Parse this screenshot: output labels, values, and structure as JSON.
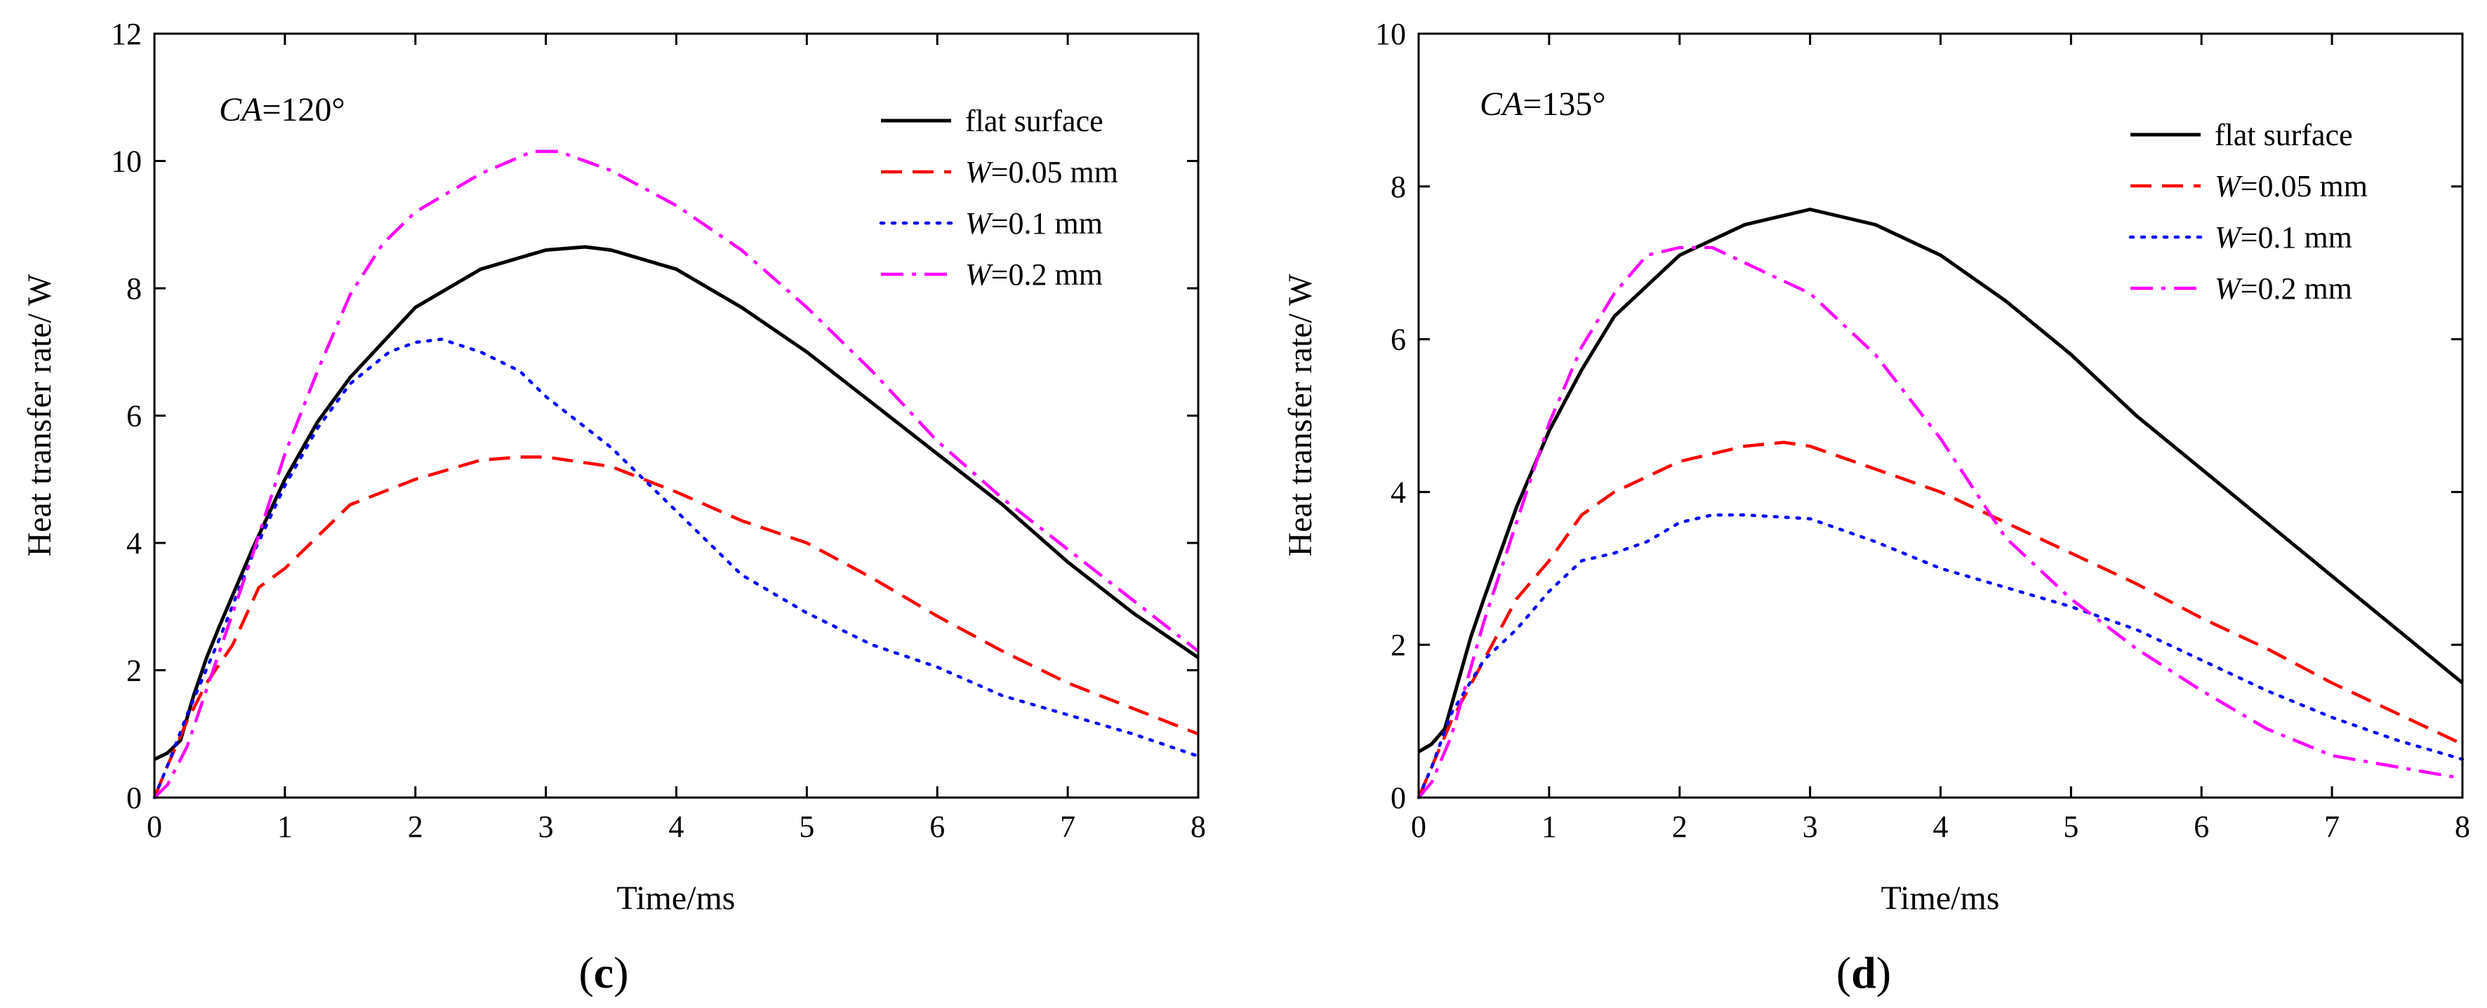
{
  "figure": {
    "colors": {
      "flat": "#000000",
      "w005": "#ff0000",
      "w01": "#0000ff",
      "w02": "#ff00ff"
    }
  },
  "chart_data": [
    {
      "type": "line",
      "panel_label": "(c)",
      "annotation": {
        "italic": "CA",
        "text": "=120°"
      },
      "xlabel": "Time/ms",
      "ylabel": "Heat transfer rate/ W",
      "xlim": [
        0,
        8
      ],
      "ylim": [
        0,
        12
      ],
      "xticks": [
        0,
        1,
        2,
        3,
        4,
        5,
        6,
        7,
        8
      ],
      "yticks": [
        0,
        2,
        4,
        6,
        8,
        10,
        12
      ],
      "legend_position": "top-right",
      "series": [
        {
          "name": "flat surface",
          "name_italic": "",
          "name_rest": "flat surface",
          "color": "#000000",
          "dash": "solid",
          "points": [
            [
              0,
              0.6
            ],
            [
              0.1,
              0.7
            ],
            [
              0.2,
              0.9
            ],
            [
              0.3,
              1.6
            ],
            [
              0.4,
              2.2
            ],
            [
              0.5,
              2.7
            ],
            [
              0.75,
              3.9
            ],
            [
              1,
              5.0
            ],
            [
              1.25,
              5.9
            ],
            [
              1.5,
              6.6
            ],
            [
              2,
              7.7
            ],
            [
              2.5,
              8.3
            ],
            [
              3,
              8.6
            ],
            [
              3.3,
              8.65
            ],
            [
              3.5,
              8.6
            ],
            [
              4,
              8.3
            ],
            [
              4.5,
              7.7
            ],
            [
              5,
              7.0
            ],
            [
              5.5,
              6.2
            ],
            [
              6,
              5.4
            ],
            [
              6.5,
              4.6
            ],
            [
              7,
              3.7
            ],
            [
              7.5,
              2.9
            ],
            [
              8,
              2.2
            ]
          ]
        },
        {
          "name": "W=0.05 mm",
          "name_italic": "W",
          "name_rest": "=0.05 mm",
          "color": "#ff0000",
          "dash": "dash",
          "points": [
            [
              0,
              0
            ],
            [
              0.1,
              0.5
            ],
            [
              0.25,
              1.2
            ],
            [
              0.4,
              1.8
            ],
            [
              0.6,
              2.4
            ],
            [
              0.8,
              3.3
            ],
            [
              1,
              3.6
            ],
            [
              1.25,
              4.1
            ],
            [
              1.5,
              4.6
            ],
            [
              2,
              5.0
            ],
            [
              2.5,
              5.3
            ],
            [
              2.8,
              5.35
            ],
            [
              3,
              5.35
            ],
            [
              3.5,
              5.2
            ],
            [
              4,
              4.8
            ],
            [
              4.5,
              4.35
            ],
            [
              5,
              4.0
            ],
            [
              5.5,
              3.45
            ],
            [
              6,
              2.85
            ],
            [
              6.5,
              2.3
            ],
            [
              7,
              1.8
            ],
            [
              7.5,
              1.4
            ],
            [
              8,
              1.0
            ]
          ]
        },
        {
          "name": "W=0.1 mm",
          "name_italic": "W",
          "name_rest": "=0.1 mm",
          "color": "#0000ff",
          "dash": "dot",
          "points": [
            [
              0,
              0
            ],
            [
              0.1,
              0.5
            ],
            [
              0.25,
              1.3
            ],
            [
              0.5,
              2.5
            ],
            [
              0.75,
              3.8
            ],
            [
              1,
              4.9
            ],
            [
              1.25,
              5.8
            ],
            [
              1.5,
              6.5
            ],
            [
              1.8,
              7.0
            ],
            [
              2,
              7.15
            ],
            [
              2.2,
              7.2
            ],
            [
              2.5,
              7.0
            ],
            [
              2.8,
              6.7
            ],
            [
              3,
              6.3
            ],
            [
              3.5,
              5.5
            ],
            [
              4,
              4.5
            ],
            [
              4.5,
              3.5
            ],
            [
              5,
              2.9
            ],
            [
              5.5,
              2.4
            ],
            [
              6,
              2.05
            ],
            [
              6.5,
              1.6
            ],
            [
              7,
              1.3
            ],
            [
              7.5,
              1.0
            ],
            [
              8,
              0.65
            ]
          ]
        },
        {
          "name": "W=0.2 mm",
          "name_italic": "W",
          "name_rest": "=0.2 mm",
          "color": "#ff00ff",
          "dash": "dashdot",
          "points": [
            [
              0,
              0
            ],
            [
              0.1,
              0.2
            ],
            [
              0.25,
              0.8
            ],
            [
              0.5,
              2.3
            ],
            [
              0.75,
              3.8
            ],
            [
              1,
              5.4
            ],
            [
              1.25,
              6.7
            ],
            [
              1.5,
              7.9
            ],
            [
              1.75,
              8.7
            ],
            [
              2,
              9.2
            ],
            [
              2.5,
              9.8
            ],
            [
              2.9,
              10.15
            ],
            [
              3.1,
              10.15
            ],
            [
              3.5,
              9.85
            ],
            [
              4,
              9.3
            ],
            [
              4.5,
              8.6
            ],
            [
              5,
              7.7
            ],
            [
              5.5,
              6.7
            ],
            [
              6,
              5.6
            ],
            [
              6.5,
              4.7
            ],
            [
              7,
              3.9
            ],
            [
              7.5,
              3.1
            ],
            [
              8,
              2.3
            ]
          ]
        }
      ]
    },
    {
      "type": "line",
      "panel_label": "(d)",
      "annotation": {
        "italic": "CA",
        "text": "=135°"
      },
      "xlabel": "Time/ms",
      "ylabel": "Heat transfer rate/ W",
      "xlim": [
        0,
        8
      ],
      "ylim": [
        0,
        10
      ],
      "xticks": [
        0,
        1,
        2,
        3,
        4,
        5,
        6,
        7,
        8
      ],
      "yticks": [
        0,
        2,
        4,
        6,
        8,
        10
      ],
      "legend_position": "top-right",
      "series": [
        {
          "name": "flat surface",
          "name_italic": "",
          "name_rest": "flat surface",
          "color": "#000000",
          "dash": "solid",
          "points": [
            [
              0,
              0.6
            ],
            [
              0.1,
              0.7
            ],
            [
              0.2,
              0.9
            ],
            [
              0.3,
              1.5
            ],
            [
              0.4,
              2.1
            ],
            [
              0.5,
              2.6
            ],
            [
              0.75,
              3.8
            ],
            [
              1,
              4.8
            ],
            [
              1.25,
              5.6
            ],
            [
              1.5,
              6.3
            ],
            [
              2,
              7.1
            ],
            [
              2.5,
              7.5
            ],
            [
              3,
              7.7
            ],
            [
              3.5,
              7.5
            ],
            [
              4,
              7.1
            ],
            [
              4.5,
              6.5
            ],
            [
              5,
              5.8
            ],
            [
              5.5,
              5.0
            ],
            [
              6,
              4.3
            ],
            [
              6.5,
              3.6
            ],
            [
              7,
              2.9
            ],
            [
              7.5,
              2.2
            ],
            [
              8,
              1.5
            ]
          ]
        },
        {
          "name": "W=0.05 mm",
          "name_italic": "W",
          "name_rest": "=0.05 mm",
          "color": "#ff0000",
          "dash": "dash",
          "points": [
            [
              0,
              0
            ],
            [
              0.1,
              0.4
            ],
            [
              0.25,
              1.0
            ],
            [
              0.5,
              1.8
            ],
            [
              0.75,
              2.6
            ],
            [
              1,
              3.1
            ],
            [
              1.25,
              3.7
            ],
            [
              1.5,
              4.0
            ],
            [
              2,
              4.4
            ],
            [
              2.5,
              4.6
            ],
            [
              2.8,
              4.65
            ],
            [
              3,
              4.6
            ],
            [
              3.5,
              4.3
            ],
            [
              4,
              4.0
            ],
            [
              4.5,
              3.6
            ],
            [
              5,
              3.2
            ],
            [
              5.5,
              2.8
            ],
            [
              6,
              2.35
            ],
            [
              6.5,
              1.95
            ],
            [
              7,
              1.5
            ],
            [
              7.5,
              1.1
            ],
            [
              8,
              0.7
            ]
          ]
        },
        {
          "name": "W=0.1 mm",
          "name_italic": "W",
          "name_rest": "=0.1 mm",
          "color": "#0000ff",
          "dash": "dot",
          "points": [
            [
              0,
              0
            ],
            [
              0.1,
              0.4
            ],
            [
              0.25,
              1.1
            ],
            [
              0.5,
              1.8
            ],
            [
              0.75,
              2.2
            ],
            [
              1,
              2.7
            ],
            [
              1.25,
              3.1
            ],
            [
              1.5,
              3.2
            ],
            [
              1.75,
              3.35
            ],
            [
              2,
              3.6
            ],
            [
              2.25,
              3.7
            ],
            [
              2.5,
              3.7
            ],
            [
              3,
              3.65
            ],
            [
              3.5,
              3.35
            ],
            [
              4,
              3.0
            ],
            [
              4.5,
              2.75
            ],
            [
              5,
              2.5
            ],
            [
              5.5,
              2.2
            ],
            [
              6,
              1.8
            ],
            [
              6.5,
              1.4
            ],
            [
              7,
              1.05
            ],
            [
              7.5,
              0.75
            ],
            [
              8,
              0.5
            ]
          ]
        },
        {
          "name": "W=0.2 mm",
          "name_italic": "W",
          "name_rest": "=0.2 mm",
          "color": "#ff00ff",
          "dash": "dashdot",
          "points": [
            [
              0,
              0
            ],
            [
              0.1,
              0.2
            ],
            [
              0.25,
              0.8
            ],
            [
              0.5,
              2.3
            ],
            [
              0.75,
              3.6
            ],
            [
              1,
              4.9
            ],
            [
              1.25,
              5.9
            ],
            [
              1.5,
              6.6
            ],
            [
              1.75,
              7.1
            ],
            [
              2,
              7.2
            ],
            [
              2.25,
              7.2
            ],
            [
              2.5,
              7.0
            ],
            [
              2.75,
              6.8
            ],
            [
              3,
              6.6
            ],
            [
              3.5,
              5.8
            ],
            [
              4,
              4.7
            ],
            [
              4.5,
              3.4
            ],
            [
              5,
              2.6
            ],
            [
              5.5,
              1.95
            ],
            [
              6,
              1.4
            ],
            [
              6.5,
              0.9
            ],
            [
              7,
              0.55
            ],
            [
              7.5,
              0.4
            ],
            [
              8,
              0.25
            ]
          ]
        }
      ]
    }
  ]
}
